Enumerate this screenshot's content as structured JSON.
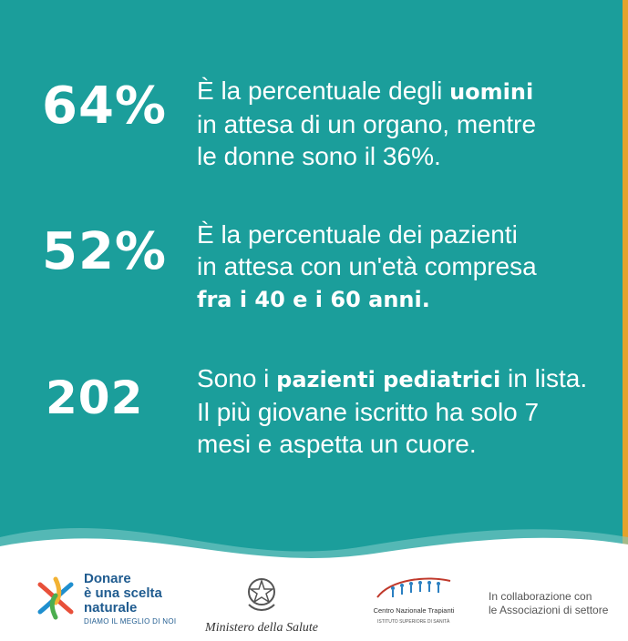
{
  "stats": [
    {
      "value": "64%",
      "lines": [
        {
          "pre": "È la percentuale degli ",
          "bold": "uomini",
          "post": ""
        },
        {
          "pre": "in attesa di un organo, mentre",
          "bold": "",
          "post": ""
        },
        {
          "pre": "le donne sono il 36%.",
          "bold": "",
          "post": ""
        }
      ]
    },
    {
      "value": "52%",
      "lines": [
        {
          "pre": "È la percentuale dei pazienti",
          "bold": "",
          "post": ""
        },
        {
          "pre": "in attesa con un'età compresa",
          "bold": "",
          "post": ""
        },
        {
          "pre": "",
          "bold": "fra i 40 e i 60 anni.",
          "post": ""
        }
      ]
    },
    {
      "value": "202",
      "lines": [
        {
          "pre": "Sono i ",
          "bold": "pazienti pediatrici",
          "post": " in lista."
        },
        {
          "pre": "Il più giovane iscritto ha solo 7",
          "bold": "",
          "post": ""
        },
        {
          "pre": "mesi e aspetta un cuore.",
          "bold": "",
          "post": ""
        }
      ]
    }
  ],
  "footer": {
    "logo_donare": {
      "line1": "Donare",
      "line2": "è una scelta",
      "line3": "naturale",
      "tagline": "DIAMO IL MEGLIO DI NOI"
    },
    "logo_ministero": {
      "text": "Ministero della Salute"
    },
    "logo_cnt": {
      "text": "Centro Nazionale Trapianti",
      "sub": "ISTITUTO SUPERIORE DI SANITÀ"
    },
    "partners": {
      "line1": "In collaborazione con",
      "line2": "le Associazioni di settore"
    }
  },
  "colors": {
    "background": "#1b9e9b",
    "stripe": "#e3a32c",
    "text": "#ffffff",
    "brand_blue": "#1f5b8f"
  }
}
